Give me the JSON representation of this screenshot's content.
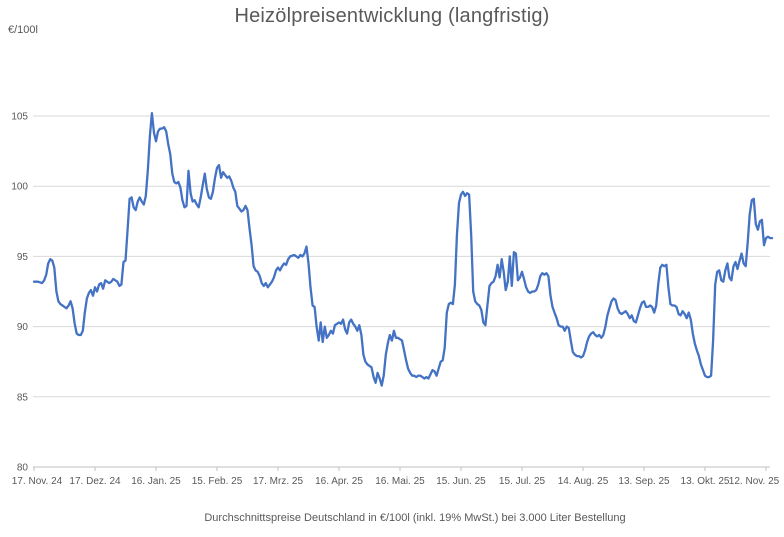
{
  "header": {
    "title": "Heizölpreisentwicklung (langfristig)",
    "unit_label": "€/100l"
  },
  "footer": {
    "caption": "Durchschnittspreise Deutschland in €/100l (inkl. 19% MwSt.) bei 3.000 Liter Bestellung"
  },
  "colors": {
    "line": "#4472C4",
    "grid": "#D9D9D9",
    "axis": "#C0C0C0",
    "text": "#595959",
    "background": "#FFFFFF"
  },
  "chart_data": {
    "type": "line",
    "title": "Heizölpreisentwicklung (langfristig)",
    "ylabel": "€/100l",
    "xlabel": "",
    "legend": "none",
    "grid": "horizontal",
    "ylim": [
      80,
      105
    ],
    "y_ticks": [
      80,
      85,
      90,
      95,
      100,
      105
    ],
    "x_tick_labels": [
      "17. Nov. 24",
      "17. Dez. 24",
      "16. Jan. 25",
      "15. Feb. 25",
      "17. Mrz. 25",
      "16. Apr. 25",
      "16. Mai. 25",
      "15. Jun. 25",
      "15. Jul. 25",
      "14. Aug. 25",
      "13. Sep. 25",
      "13. Okt. 25",
      "12. Nov. 25"
    ],
    "x_days_range": [
      0,
      360
    ],
    "points": [
      [
        0,
        93.2
      ],
      [
        2,
        93.2
      ],
      [
        4,
        93.1
      ],
      [
        5,
        93.3
      ],
      [
        6,
        93.7
      ],
      [
        7,
        94.5
      ],
      [
        8,
        94.8
      ],
      [
        9,
        94.7
      ],
      [
        10,
        94.2
      ],
      [
        11,
        92.5
      ],
      [
        12,
        91.8
      ],
      [
        13,
        91.6
      ],
      [
        14,
        91.5
      ],
      [
        15,
        91.4
      ],
      [
        16,
        91.3
      ],
      [
        17,
        91.5
      ],
      [
        18,
        91.8
      ],
      [
        19,
        91.3
      ],
      [
        20,
        90.2
      ],
      [
        21,
        89.5
      ],
      [
        22,
        89.4
      ],
      [
        23,
        89.4
      ],
      [
        24,
        89.7
      ],
      [
        25,
        91.0
      ],
      [
        26,
        92.0
      ],
      [
        27,
        92.4
      ],
      [
        28,
        92.6
      ],
      [
        29,
        92.2
      ],
      [
        30,
        92.8
      ],
      [
        31,
        92.5
      ],
      [
        32,
        93.0
      ],
      [
        33,
        93.1
      ],
      [
        34,
        92.7
      ],
      [
        35,
        93.3
      ],
      [
        36,
        93.2
      ],
      [
        37,
        93.1
      ],
      [
        38,
        93.2
      ],
      [
        39,
        93.4
      ],
      [
        40,
        93.3
      ],
      [
        41,
        93.2
      ],
      [
        42,
        92.9
      ],
      [
        43,
        93.0
      ],
      [
        44,
        94.6
      ],
      [
        45,
        94.7
      ],
      [
        46,
        96.8
      ],
      [
        47,
        99.1
      ],
      [
        48,
        99.2
      ],
      [
        49,
        98.5
      ],
      [
        50,
        98.3
      ],
      [
        51,
        98.9
      ],
      [
        52,
        99.2
      ],
      [
        53,
        98.9
      ],
      [
        54,
        98.7
      ],
      [
        55,
        99.3
      ],
      [
        56,
        101.2
      ],
      [
        57,
        103.6
      ],
      [
        58,
        105.2
      ],
      [
        59,
        103.8
      ],
      [
        60,
        103.2
      ],
      [
        61,
        103.9
      ],
      [
        62,
        104.1
      ],
      [
        63,
        104.1
      ],
      [
        64,
        104.2
      ],
      [
        65,
        103.9
      ],
      [
        66,
        103.0
      ],
      [
        67,
        102.3
      ],
      [
        68,
        100.9
      ],
      [
        69,
        100.3
      ],
      [
        70,
        100.2
      ],
      [
        71,
        100.3
      ],
      [
        72,
        99.9
      ],
      [
        73,
        99.0
      ],
      [
        74,
        98.5
      ],
      [
        75,
        98.6
      ],
      [
        76,
        101.1
      ],
      [
        77,
        99.5
      ],
      [
        78,
        98.9
      ],
      [
        79,
        99.0
      ],
      [
        80,
        98.7
      ],
      [
        81,
        98.5
      ],
      [
        82,
        99.2
      ],
      [
        83,
        100.1
      ],
      [
        84,
        100.9
      ],
      [
        85,
        99.8
      ],
      [
        86,
        99.2
      ],
      [
        87,
        99.1
      ],
      [
        88,
        99.6
      ],
      [
        89,
        100.6
      ],
      [
        90,
        101.3
      ],
      [
        91,
        101.5
      ],
      [
        92,
        100.6
      ],
      [
        93,
        101.0
      ],
      [
        94,
        100.8
      ],
      [
        95,
        100.6
      ],
      [
        96,
        100.7
      ],
      [
        97,
        100.4
      ],
      [
        98,
        99.9
      ],
      [
        99,
        99.6
      ],
      [
        100,
        98.6
      ],
      [
        101,
        98.4
      ],
      [
        102,
        98.2
      ],
      [
        103,
        98.3
      ],
      [
        104,
        98.6
      ],
      [
        105,
        98.3
      ],
      [
        106,
        97.0
      ],
      [
        107,
        95.8
      ],
      [
        108,
        94.3
      ],
      [
        109,
        94.0
      ],
      [
        110,
        93.9
      ],
      [
        111,
        93.6
      ],
      [
        112,
        93.1
      ],
      [
        113,
        92.9
      ],
      [
        114,
        93.1
      ],
      [
        115,
        92.8
      ],
      [
        116,
        93.0
      ],
      [
        117,
        93.2
      ],
      [
        118,
        93.5
      ],
      [
        119,
        94.0
      ],
      [
        120,
        94.2
      ],
      [
        121,
        94.0
      ],
      [
        122,
        94.3
      ],
      [
        123,
        94.5
      ],
      [
        124,
        94.4
      ],
      [
        125,
        94.8
      ],
      [
        126,
        95.0
      ],
      [
        128,
        95.1
      ],
      [
        130,
        94.9
      ],
      [
        131,
        95.1
      ],
      [
        132,
        95.0
      ],
      [
        133,
        95.2
      ],
      [
        134,
        95.7
      ],
      [
        135,
        94.5
      ],
      [
        136,
        92.8
      ],
      [
        137,
        91.5
      ],
      [
        138,
        91.4
      ],
      [
        139,
        90.0
      ],
      [
        140,
        89.0
      ],
      [
        141,
        90.3
      ],
      [
        142,
        88.9
      ],
      [
        143,
        90.0
      ],
      [
        144,
        89.2
      ],
      [
        145,
        89.4
      ],
      [
        146,
        89.7
      ],
      [
        147,
        89.5
      ],
      [
        148,
        90.1
      ],
      [
        149,
        90.2
      ],
      [
        150,
        90.3
      ],
      [
        151,
        90.2
      ],
      [
        152,
        90.5
      ],
      [
        153,
        89.8
      ],
      [
        154,
        89.5
      ],
      [
        155,
        90.3
      ],
      [
        156,
        90.5
      ],
      [
        157,
        90.2
      ],
      [
        158,
        90.0
      ],
      [
        159,
        89.7
      ],
      [
        160,
        90.1
      ],
      [
        161,
        89.4
      ],
      [
        162,
        88.0
      ],
      [
        163,
        87.5
      ],
      [
        164,
        87.3
      ],
      [
        165,
        87.2
      ],
      [
        166,
        87.1
      ],
      [
        167,
        86.4
      ],
      [
        168,
        86.0
      ],
      [
        169,
        86.7
      ],
      [
        170,
        86.3
      ],
      [
        171,
        85.8
      ],
      [
        172,
        86.5
      ],
      [
        173,
        88.0
      ],
      [
        174,
        88.8
      ],
      [
        175,
        89.4
      ],
      [
        176,
        89.0
      ],
      [
        177,
        89.7
      ],
      [
        178,
        89.2
      ],
      [
        179,
        89.2
      ],
      [
        180,
        89.1
      ],
      [
        181,
        89.0
      ],
      [
        182,
        88.3
      ],
      [
        183,
        87.6
      ],
      [
        184,
        87.0
      ],
      [
        185,
        86.7
      ],
      [
        186,
        86.5
      ],
      [
        187,
        86.5
      ],
      [
        188,
        86.4
      ],
      [
        189,
        86.5
      ],
      [
        190,
        86.5
      ],
      [
        191,
        86.4
      ],
      [
        192,
        86.3
      ],
      [
        193,
        86.4
      ],
      [
        194,
        86.3
      ],
      [
        195,
        86.6
      ],
      [
        196,
        86.9
      ],
      [
        197,
        86.8
      ],
      [
        198,
        86.5
      ],
      [
        199,
        87.0
      ],
      [
        200,
        87.5
      ],
      [
        201,
        87.6
      ],
      [
        202,
        88.5
      ],
      [
        203,
        91.0
      ],
      [
        204,
        91.6
      ],
      [
        205,
        91.7
      ],
      [
        206,
        91.6
      ],
      [
        207,
        93.0
      ],
      [
        208,
        96.5
      ],
      [
        209,
        98.8
      ],
      [
        210,
        99.4
      ],
      [
        211,
        99.6
      ],
      [
        212,
        99.3
      ],
      [
        213,
        99.5
      ],
      [
        214,
        99.4
      ],
      [
        215,
        96.5
      ],
      [
        216,
        92.5
      ],
      [
        217,
        91.8
      ],
      [
        218,
        91.6
      ],
      [
        219,
        91.5
      ],
      [
        220,
        91.2
      ],
      [
        221,
        90.3
      ],
      [
        222,
        90.1
      ],
      [
        223,
        91.5
      ],
      [
        224,
        92.9
      ],
      [
        225,
        93.1
      ],
      [
        226,
        93.2
      ],
      [
        227,
        93.6
      ],
      [
        228,
        94.4
      ],
      [
        229,
        93.5
      ],
      [
        230,
        94.8
      ],
      [
        231,
        93.9
      ],
      [
        232,
        92.6
      ],
      [
        233,
        93.2
      ],
      [
        234,
        95.0
      ],
      [
        235,
        92.9
      ],
      [
        236,
        95.3
      ],
      [
        237,
        95.2
      ],
      [
        238,
        93.3
      ],
      [
        239,
        93.5
      ],
      [
        240,
        93.9
      ],
      [
        241,
        93.4
      ],
      [
        242,
        92.8
      ],
      [
        243,
        92.5
      ],
      [
        244,
        92.4
      ],
      [
        245,
        92.5
      ],
      [
        246,
        92.5
      ],
      [
        247,
        92.6
      ],
      [
        248,
        93.0
      ],
      [
        249,
        93.6
      ],
      [
        250,
        93.8
      ],
      [
        251,
        93.7
      ],
      [
        252,
        93.8
      ],
      [
        253,
        93.6
      ],
      [
        254,
        92.2
      ],
      [
        255,
        91.4
      ],
      [
        256,
        91.0
      ],
      [
        257,
        90.6
      ],
      [
        258,
        90.1
      ],
      [
        259,
        90.0
      ],
      [
        260,
        90.0
      ],
      [
        261,
        89.7
      ],
      [
        262,
        90.0
      ],
      [
        263,
        89.9
      ],
      [
        264,
        89.0
      ],
      [
        265,
        88.2
      ],
      [
        266,
        88.0
      ],
      [
        267,
        87.9
      ],
      [
        268,
        87.9
      ],
      [
        269,
        87.8
      ],
      [
        270,
        87.9
      ],
      [
        271,
        88.3
      ],
      [
        272,
        88.9
      ],
      [
        273,
        89.3
      ],
      [
        274,
        89.5
      ],
      [
        275,
        89.6
      ],
      [
        276,
        89.4
      ],
      [
        277,
        89.3
      ],
      [
        278,
        89.4
      ],
      [
        279,
        89.2
      ],
      [
        280,
        89.4
      ],
      [
        281,
        90.0
      ],
      [
        282,
        90.8
      ],
      [
        283,
        91.3
      ],
      [
        284,
        91.8
      ],
      [
        285,
        92.0
      ],
      [
        286,
        91.9
      ],
      [
        287,
        91.3
      ],
      [
        288,
        91.0
      ],
      [
        289,
        90.9
      ],
      [
        290,
        91.0
      ],
      [
        291,
        91.1
      ],
      [
        292,
        90.9
      ],
      [
        293,
        90.6
      ],
      [
        294,
        90.8
      ],
      [
        295,
        90.4
      ],
      [
        296,
        90.3
      ],
      [
        297,
        90.8
      ],
      [
        298,
        91.3
      ],
      [
        299,
        91.7
      ],
      [
        300,
        91.8
      ],
      [
        301,
        91.4
      ],
      [
        302,
        91.4
      ],
      [
        303,
        91.5
      ],
      [
        304,
        91.4
      ],
      [
        305,
        91.0
      ],
      [
        306,
        91.5
      ],
      [
        307,
        93.0
      ],
      [
        308,
        94.2
      ],
      [
        309,
        94.4
      ],
      [
        310,
        94.3
      ],
      [
        311,
        94.4
      ],
      [
        312,
        92.8
      ],
      [
        313,
        91.6
      ],
      [
        314,
        91.5
      ],
      [
        315,
        91.5
      ],
      [
        316,
        91.4
      ],
      [
        317,
        90.9
      ],
      [
        318,
        90.8
      ],
      [
        319,
        91.1
      ],
      [
        320,
        90.9
      ],
      [
        321,
        90.6
      ],
      [
        322,
        91.0
      ],
      [
        323,
        90.5
      ],
      [
        324,
        89.5
      ],
      [
        325,
        88.8
      ],
      [
        326,
        88.3
      ],
      [
        327,
        87.9
      ],
      [
        328,
        87.3
      ],
      [
        329,
        86.9
      ],
      [
        330,
        86.5
      ],
      [
        331,
        86.4
      ],
      [
        332,
        86.4
      ],
      [
        333,
        86.5
      ],
      [
        334,
        89.0
      ],
      [
        335,
        93.0
      ],
      [
        336,
        93.9
      ],
      [
        337,
        94.0
      ],
      [
        338,
        93.3
      ],
      [
        339,
        93.2
      ],
      [
        340,
        94.0
      ],
      [
        341,
        94.5
      ],
      [
        342,
        93.5
      ],
      [
        343,
        93.3
      ],
      [
        344,
        94.3
      ],
      [
        345,
        94.6
      ],
      [
        346,
        94.1
      ],
      [
        347,
        94.7
      ],
      [
        348,
        95.2
      ],
      [
        349,
        94.5
      ],
      [
        350,
        94.3
      ],
      [
        351,
        96.0
      ],
      [
        352,
        98.0
      ],
      [
        353,
        99.0
      ],
      [
        354,
        99.1
      ],
      [
        355,
        97.3
      ],
      [
        356,
        96.9
      ],
      [
        357,
        97.5
      ],
      [
        358,
        97.6
      ],
      [
        359,
        95.8
      ],
      [
        360,
        96.3
      ],
      [
        361,
        96.4
      ],
      [
        362,
        96.3
      ],
      [
        363,
        96.3
      ]
    ]
  }
}
